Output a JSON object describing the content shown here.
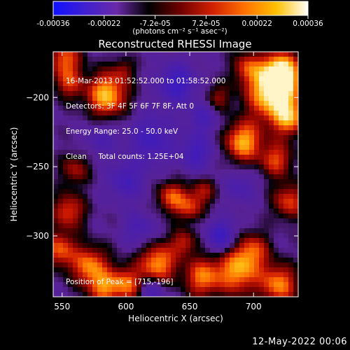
{
  "colorbar": {
    "ticks": [
      "-0.00036",
      "-0.00022",
      "-7.2e-05",
      "7.2e-05",
      "0.00022",
      "0.00036"
    ],
    "units_label": "(photons cm⁻² s⁻¹ asec⁻²)",
    "stops": [
      "#1010ff",
      "#4020d0",
      "#6a2aa8",
      "#000000",
      "#700000",
      "#d02000",
      "#ff7000",
      "#ffc000",
      "#ffffff"
    ]
  },
  "header": {
    "line1": "16-Mar-2013 01:52:52.000 to 01:58:52.000",
    "line2": "Detectors: 3F 4F 5F 6F 7F 8F, Att 0",
    "line3": "Energy Range: 25.0 - 50.0 keV",
    "line4": "Clean     Total counts: 1.25E+04"
  },
  "peak_label": "Position of Peak = [715,-196]",
  "footer_date": "12-May-2022 00:06",
  "chart_data": {
    "type": "heatmap",
    "title": "Reconstructed RHESSI Image",
    "xlabel": "Heliocentric X (arcsec)",
    "ylabel": "Heliocentric Y (arcsec)",
    "xlim": [
      543,
      735
    ],
    "ylim": [
      -344,
      -167
    ],
    "xticks": [
      550,
      600,
      650,
      700
    ],
    "yticks": [
      -200,
      -250,
      -300
    ],
    "grid": false,
    "peak": [
      715,
      -196
    ],
    "blobs": [
      {
        "x": 715,
        "y": -196,
        "sigma": 14,
        "amp": 1.0
      },
      {
        "x": 722,
        "y": -182,
        "sigma": 10,
        "amp": 0.85
      },
      {
        "x": 728,
        "y": -215,
        "sigma": 9,
        "amp": 0.65
      },
      {
        "x": 692,
        "y": -232,
        "sigma": 10,
        "amp": 0.8
      },
      {
        "x": 718,
        "y": -245,
        "sigma": 9,
        "amp": 0.55
      },
      {
        "x": 728,
        "y": -275,
        "sigma": 9,
        "amp": 0.55
      },
      {
        "x": 700,
        "y": -310,
        "sigma": 9,
        "amp": 0.45
      },
      {
        "x": 688,
        "y": -325,
        "sigma": 12,
        "amp": 0.75
      },
      {
        "x": 720,
        "y": -335,
        "sigma": 10,
        "amp": 0.7
      },
      {
        "x": 660,
        "y": -330,
        "sigma": 10,
        "amp": 0.65
      },
      {
        "x": 645,
        "y": -305,
        "sigma": 7,
        "amp": 0.45
      },
      {
        "x": 625,
        "y": -320,
        "sigma": 10,
        "amp": 0.75
      },
      {
        "x": 600,
        "y": -335,
        "sigma": 9,
        "amp": 0.65
      },
      {
        "x": 582,
        "y": -338,
        "sigma": 8,
        "amp": 0.55
      },
      {
        "x": 572,
        "y": -322,
        "sigma": 10,
        "amp": 0.7
      },
      {
        "x": 548,
        "y": -310,
        "sigma": 9,
        "amp": 0.6
      },
      {
        "x": 555,
        "y": -282,
        "sigma": 9,
        "amp": 0.55
      },
      {
        "x": 560,
        "y": -252,
        "sigma": 8,
        "amp": 0.4
      },
      {
        "x": 585,
        "y": -198,
        "sigma": 11,
        "amp": 0.85
      },
      {
        "x": 555,
        "y": -190,
        "sigma": 8,
        "amp": 0.45
      },
      {
        "x": 552,
        "y": -172,
        "sigma": 9,
        "amp": 0.6
      },
      {
        "x": 636,
        "y": -272,
        "sigma": 8,
        "amp": 0.6
      },
      {
        "x": 650,
        "y": -280,
        "sigma": 7,
        "amp": 0.45
      },
      {
        "x": 660,
        "y": -268,
        "sigma": 7,
        "amp": 0.4
      },
      {
        "x": 695,
        "y": -178,
        "sigma": 8,
        "amp": 0.45
      },
      {
        "x": 672,
        "y": -200,
        "sigma": 7,
        "amp": 0.35
      },
      {
        "x": 598,
        "y": -180,
        "sigma": 6,
        "amp": 0.3
      },
      {
        "x": 640,
        "y": -190,
        "sigma": 10,
        "amp": -0.55
      },
      {
        "x": 620,
        "y": -230,
        "sigma": 12,
        "amp": -0.45
      },
      {
        "x": 600,
        "y": -260,
        "sigma": 10,
        "amp": -0.4
      },
      {
        "x": 655,
        "y": -240,
        "sigma": 9,
        "amp": -0.45
      },
      {
        "x": 675,
        "y": -300,
        "sigma": 8,
        "amp": -0.55
      },
      {
        "x": 610,
        "y": -295,
        "sigma": 8,
        "amp": -0.35
      },
      {
        "x": 620,
        "y": -340,
        "sigma": 7,
        "amp": -0.4
      },
      {
        "x": 690,
        "y": -265,
        "sigma": 8,
        "amp": -0.3
      },
      {
        "x": 580,
        "y": -230,
        "sigma": 8,
        "amp": -0.3
      },
      {
        "x": 660,
        "y": -215,
        "sigma": 8,
        "amp": -0.35
      }
    ]
  }
}
